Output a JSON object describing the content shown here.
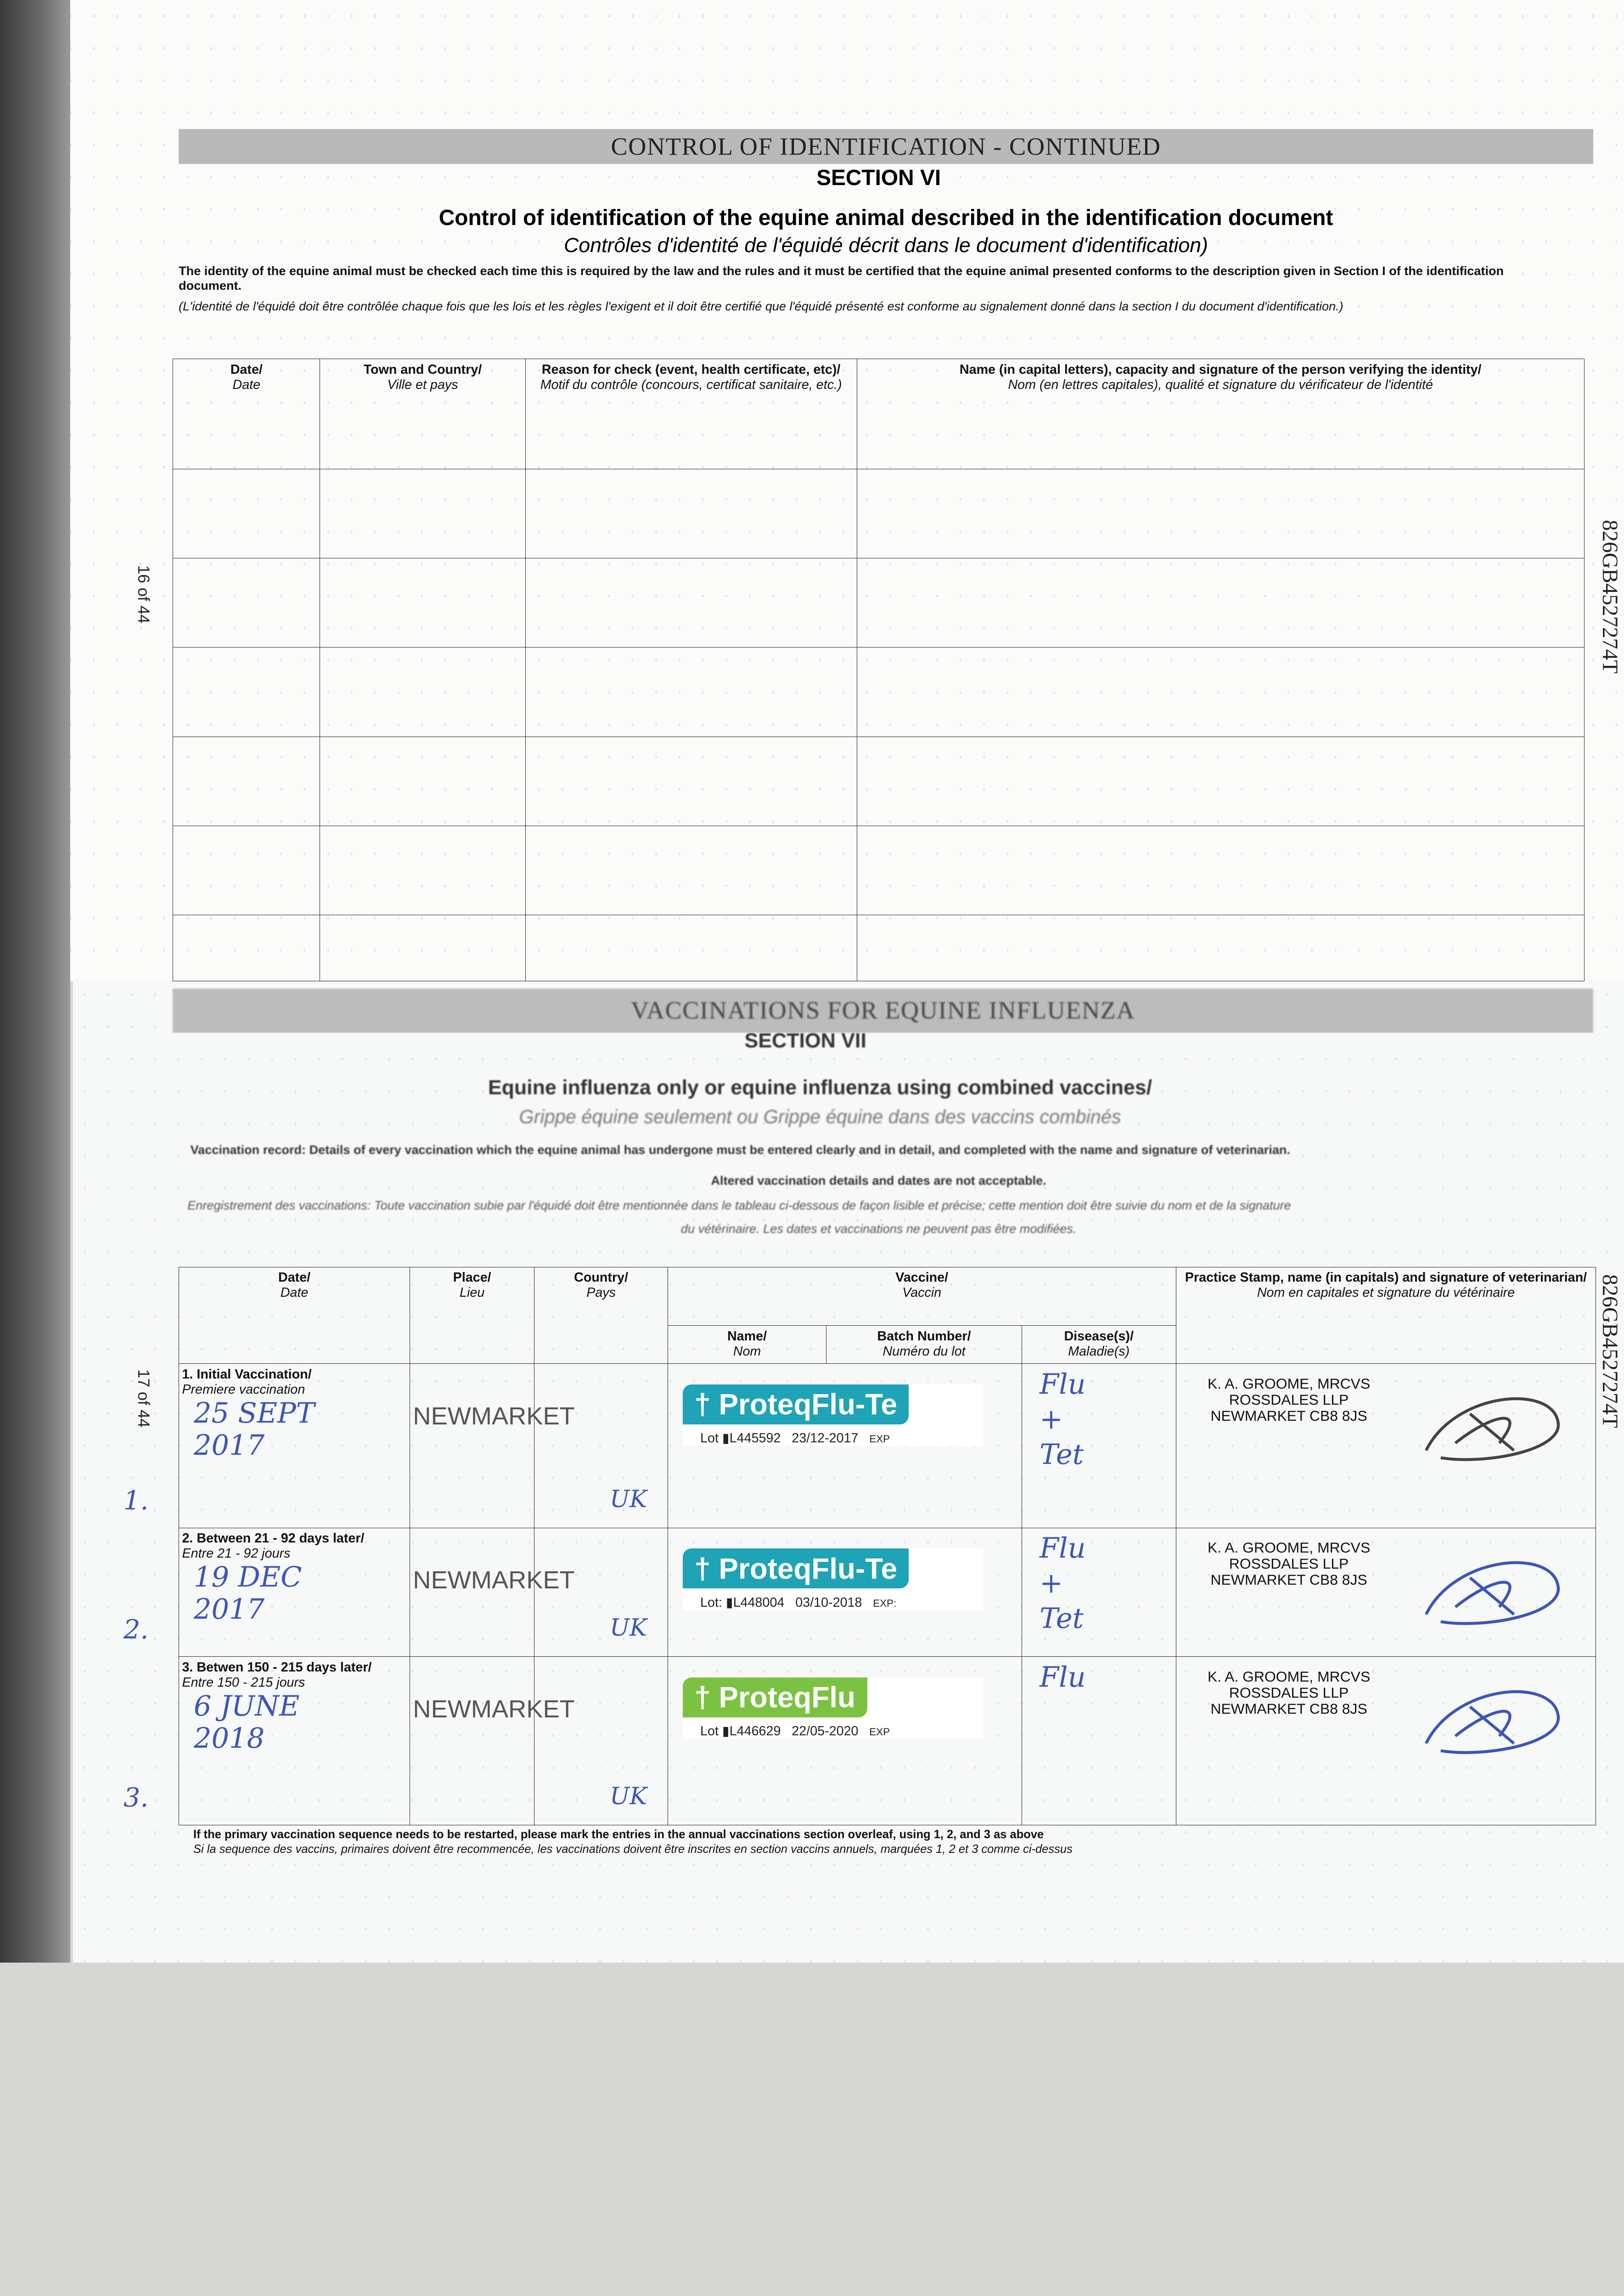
{
  "page_upper": {
    "header_bar": "CONTROL OF IDENTIFICATION - CONTINUED",
    "section": "SECTION VI",
    "title": "Control of identification of the equine animal described in the identification document",
    "subtitle": "Contrôles d'identité de l'équidé décrit dans le document d'identification)",
    "intro_en": "The identity of the equine animal must be checked each time this is required by the law and the rules and it must be certified that the equine animal presented conforms to the description given in Section I of the identification document.",
    "intro_fr": "(L'identité de l'équidé doit être contrôlée chaque fois que les lois et les règles l'exigent et il doit être certifié que l'équidé présenté est conforme au signalement donné dans la section I du document d'identification.)",
    "page_number": "16 of 44",
    "side_code": "826GB4527274T",
    "columns": [
      {
        "en": "Date/",
        "fr": "Date"
      },
      {
        "en": "Town and Country/",
        "fr": "Ville et pays"
      },
      {
        "en": "Reason for check (event, health certificate, etc)/",
        "fr": "Motif du contrôle (concours, certificat sanitaire, etc.)"
      },
      {
        "en": "Name (in capital letters), capacity and signature of the person verifying the identity/",
        "fr": "Nom (en lettres capitales), qualité et signature du vérificateur de l'identité"
      }
    ]
  },
  "page_lower": {
    "header_bar": "VACCINATIONS FOR EQUINE INFLUENZA",
    "section": "SECTION VII",
    "title": "Equine influenza only or equine influenza using combined vaccines/",
    "subtitle": "Grippe équine seulement ou Grippe équine dans des vaccins combinés",
    "record_en": "Vaccination record: Details of every vaccination which the equine animal has undergone must be entered clearly and in detail, and completed with the name and signature of veterinarian.",
    "record_en2": "Altered vaccination details and dates are not acceptable.",
    "record_fr": "Enregistrement des vaccinations: Toute vaccination subie par l'équidé doit être mentionnée dans le tableau ci-dessous de façon lisible et précise; cette mention doit être suivie du nom et de la signature",
    "record_fr2": "du vétérinaire. Les dates et vaccinations ne peuvent pas être modifiées.",
    "page_number": "17 of 44",
    "side_code": "826GB4527274T",
    "headers": {
      "date": {
        "en": "Date/",
        "fr": "Date"
      },
      "place": {
        "en": "Place/",
        "fr": "Lieu"
      },
      "country": {
        "en": "Country/",
        "fr": "Pays"
      },
      "vaccine": {
        "en": "Vaccine/",
        "fr": "Vaccin"
      },
      "name": {
        "en": "Name/",
        "fr": "Nom"
      },
      "batch": {
        "en": "Batch Number/",
        "fr": "Numéro du lot"
      },
      "disease": {
        "en": "Disease(s)/",
        "fr": "Maladie(s)"
      },
      "vet": {
        "en": "Practice Stamp, name (in capitals) and signature of veterinarian/",
        "fr": "Nom en capitales et signature du vétérinaire"
      }
    },
    "rows": [
      {
        "label_en": "1. Initial Vaccination/",
        "label_fr": "Premiere vaccination",
        "hand_num": "1.",
        "date": "25 SEPT 2017",
        "place": "NEWMARKET",
        "country": "UK",
        "vaccine": "ProteqFlu-Te",
        "lot": "Lot",
        "batch": "L445592",
        "exp_date": "23/12-2017",
        "exp": "EXP",
        "disease": "Flu + Tet",
        "vet_line1": "K. A. GROOME, MRCVS",
        "vet_line2": "ROSSDALES LLP",
        "vet_line3": "NEWMARKET CB8 8JS"
      },
      {
        "label_en": "2. Between 21 - 92 days later/",
        "label_fr": "Entre 21 - 92 jours",
        "hand_num": "2.",
        "date": "19 DEC 2017",
        "place": "NEWMARKET",
        "country": "UK",
        "vaccine": "ProteqFlu-Te",
        "lot": "Lot:",
        "batch": "L448004",
        "exp_date": "03/10-2018",
        "exp": "EXP:",
        "disease": "Flu + Tet",
        "vet_line1": "K. A. GROOME, MRCVS",
        "vet_line2": "ROSSDALES LLP",
        "vet_line3": "NEWMARKET CB8 8JS"
      },
      {
        "label_en": "3. Betwen 150 - 215 days later/",
        "label_fr": "Entre 150 - 215 jours",
        "hand_num": "3.",
        "date": "6 JUNE 2018",
        "place": "NEWMARKET",
        "country": "UK",
        "vaccine": "ProteqFlu",
        "lot": "Lot",
        "batch": "L446629",
        "exp_date": "22/05-2020",
        "exp": "EXP",
        "disease": "Flu",
        "vet_line1": "K. A. GROOME, MRCVS",
        "vet_line2": "ROSSDALES LLP",
        "vet_line3": "NEWMARKET CB8 8JS"
      }
    ],
    "footnote_en": "If the primary vaccination sequence needs to be restarted, please mark the entries in the annual vaccinations section overleaf, using 1, 2, and 3 as above",
    "footnote_fr": "Si la sequence des vaccins, primaires doivent être recommencée, les vaccinations doivent être inscrites en section vaccins annuels, marquées 1, 2 et 3 comme ci-dessus"
  },
  "colors": {
    "teal": "#1fa3b6",
    "green": "#7cc242",
    "ink_blue": "#3c55b8"
  }
}
